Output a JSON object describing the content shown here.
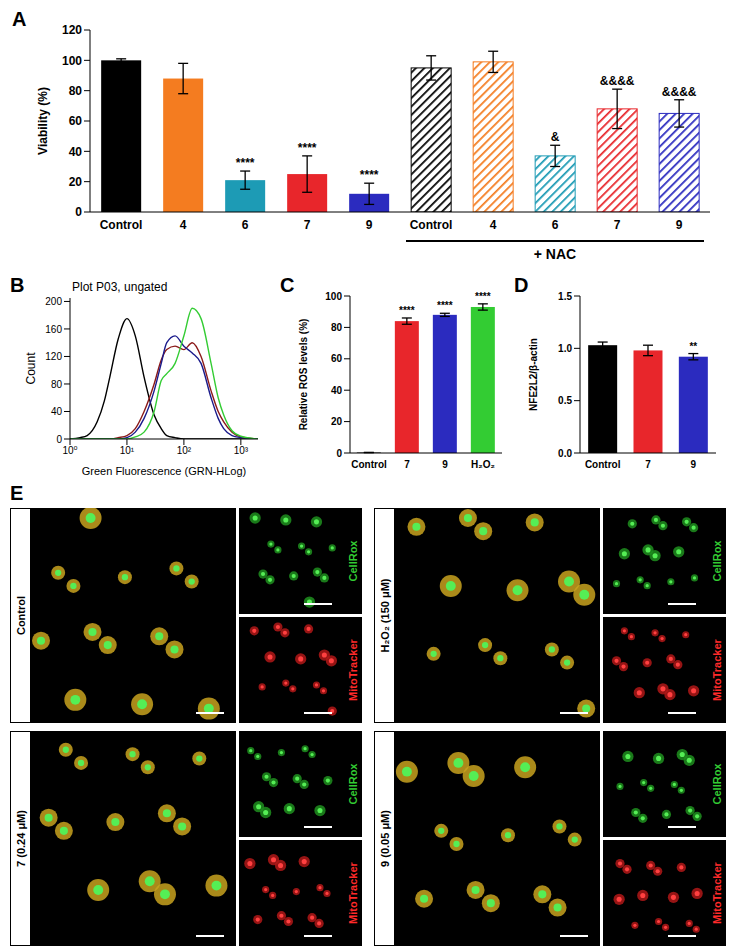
{
  "chart_data": [
    {
      "label": "A",
      "type": "bar",
      "y_label": "Viability (%)",
      "categories": [
        "Control",
        "4",
        "6",
        "7",
        "9",
        "Control",
        "4",
        "6",
        "7",
        "9"
      ],
      "values": [
        100,
        88,
        21,
        25,
        12,
        95,
        99,
        37,
        68,
        65
      ],
      "errors": [
        1,
        10,
        6,
        12,
        7,
        8,
        7,
        7,
        13,
        9
      ],
      "colors": [
        "#000000",
        "#f47c20",
        "#1d9bb5",
        "#e8262b",
        "#2b2bbf",
        "#000000",
        "#f47c20",
        "#1d9bb5",
        "#e8262b",
        "#2b2bbf"
      ],
      "annotations": [
        null,
        null,
        "****",
        "****",
        "****",
        null,
        null,
        "&",
        "&&&&",
        "&&&&"
      ],
      "groups": [
        {
          "label": "+ NAC",
          "from": 5,
          "to": 9
        }
      ],
      "ylim": [
        0,
        120
      ],
      "yticks": [
        0,
        20,
        40,
        60,
        80,
        100,
        120
      ]
    },
    {
      "label": "B",
      "type": "line",
      "title": "Plot P03, ungated",
      "x_label": "Green Fluorescence (GRN-HLog)",
      "y_label": "Count",
      "log": "x",
      "x": [
        1,
        1.5,
        2,
        3,
        4,
        5,
        7,
        10,
        14,
        20,
        30,
        40,
        50,
        70,
        100,
        140,
        200,
        300,
        400,
        500,
        700,
        1000,
        2000
      ],
      "series": [
        {
          "color": "#000000",
          "values": [
            0,
            2,
            5,
            25,
            55,
            90,
            145,
            175,
            150,
            90,
            35,
            15,
            5,
            2,
            0,
            0,
            0,
            0,
            0,
            0,
            0,
            0,
            0
          ]
        },
        {
          "color": "#8b1a1a",
          "values": [
            0,
            0,
            0,
            0,
            0,
            0,
            2,
            5,
            15,
            40,
            80,
            115,
            130,
            135,
            130,
            140,
            120,
            70,
            40,
            25,
            10,
            3,
            0
          ]
        },
        {
          "color": "#1a1a8b",
          "values": [
            0,
            0,
            0,
            0,
            0,
            0,
            0,
            2,
            10,
            30,
            70,
            110,
            140,
            150,
            135,
            125,
            110,
            60,
            30,
            15,
            5,
            2,
            0
          ]
        },
        {
          "color": "#33cc33",
          "values": [
            0,
            0,
            0,
            0,
            0,
            0,
            0,
            0,
            3,
            10,
            40,
            85,
            95,
            110,
            150,
            190,
            175,
            110,
            60,
            35,
            12,
            4,
            0
          ]
        }
      ],
      "xlim": [
        1,
        2000
      ],
      "xticks": [
        {
          "value": 1,
          "label": "10⁰"
        },
        {
          "value": 10,
          "label": "10¹"
        },
        {
          "value": 100,
          "label": "10²"
        },
        {
          "value": 1000,
          "label": "10³"
        }
      ],
      "ylim": [
        0,
        205
      ],
      "yticks": [
        0,
        40,
        80,
        120,
        160,
        200
      ]
    },
    {
      "label": "C",
      "type": "bar",
      "y_label": "Relative ROS levels (%)",
      "categories": [
        "Control",
        "7",
        "9",
        "H₂O₂"
      ],
      "values": [
        0.3,
        84,
        88,
        93
      ],
      "errors": [
        0.1,
        2,
        1,
        2
      ],
      "colors": [
        "#000000",
        "#e8262b",
        "#2b2bbf",
        "#33cc33"
      ],
      "annotations": [
        null,
        "****",
        "****",
        "****"
      ],
      "ylim": [
        0,
        100
      ],
      "yticks": [
        0,
        20,
        40,
        60,
        80,
        100
      ]
    },
    {
      "label": "D",
      "type": "bar",
      "y_label": "NFE2L2/β-actin",
      "categories": [
        "Control",
        "7",
        "9"
      ],
      "values": [
        1.03,
        0.98,
        0.92
      ],
      "errors": [
        0.03,
        0.05,
        0.03
      ],
      "colors": [
        "#000000",
        "#e8262b",
        "#2b2bbf"
      ],
      "annotations": [
        null,
        null,
        "**"
      ],
      "ylim": [
        0,
        1.5
      ],
      "yticks": [
        {
          "value": 0,
          "label": "0.0"
        },
        {
          "value": 0.5,
          "label": "0.5"
        },
        {
          "value": 1,
          "label": "1.0"
        },
        {
          "value": 1.5,
          "label": "1.5"
        }
      ]
    }
  ],
  "micrographs": {
    "label": "E",
    "conditions": [
      "Control",
      "H₂O₂ (150 μM)",
      "7 (0.24 μM)",
      "9 (0.05 μM)"
    ],
    "stains": [
      {
        "name": "CellRox",
        "color": "#33cc33"
      },
      {
        "name": "MitoTracker",
        "color": "#ff2a2a"
      }
    ]
  }
}
